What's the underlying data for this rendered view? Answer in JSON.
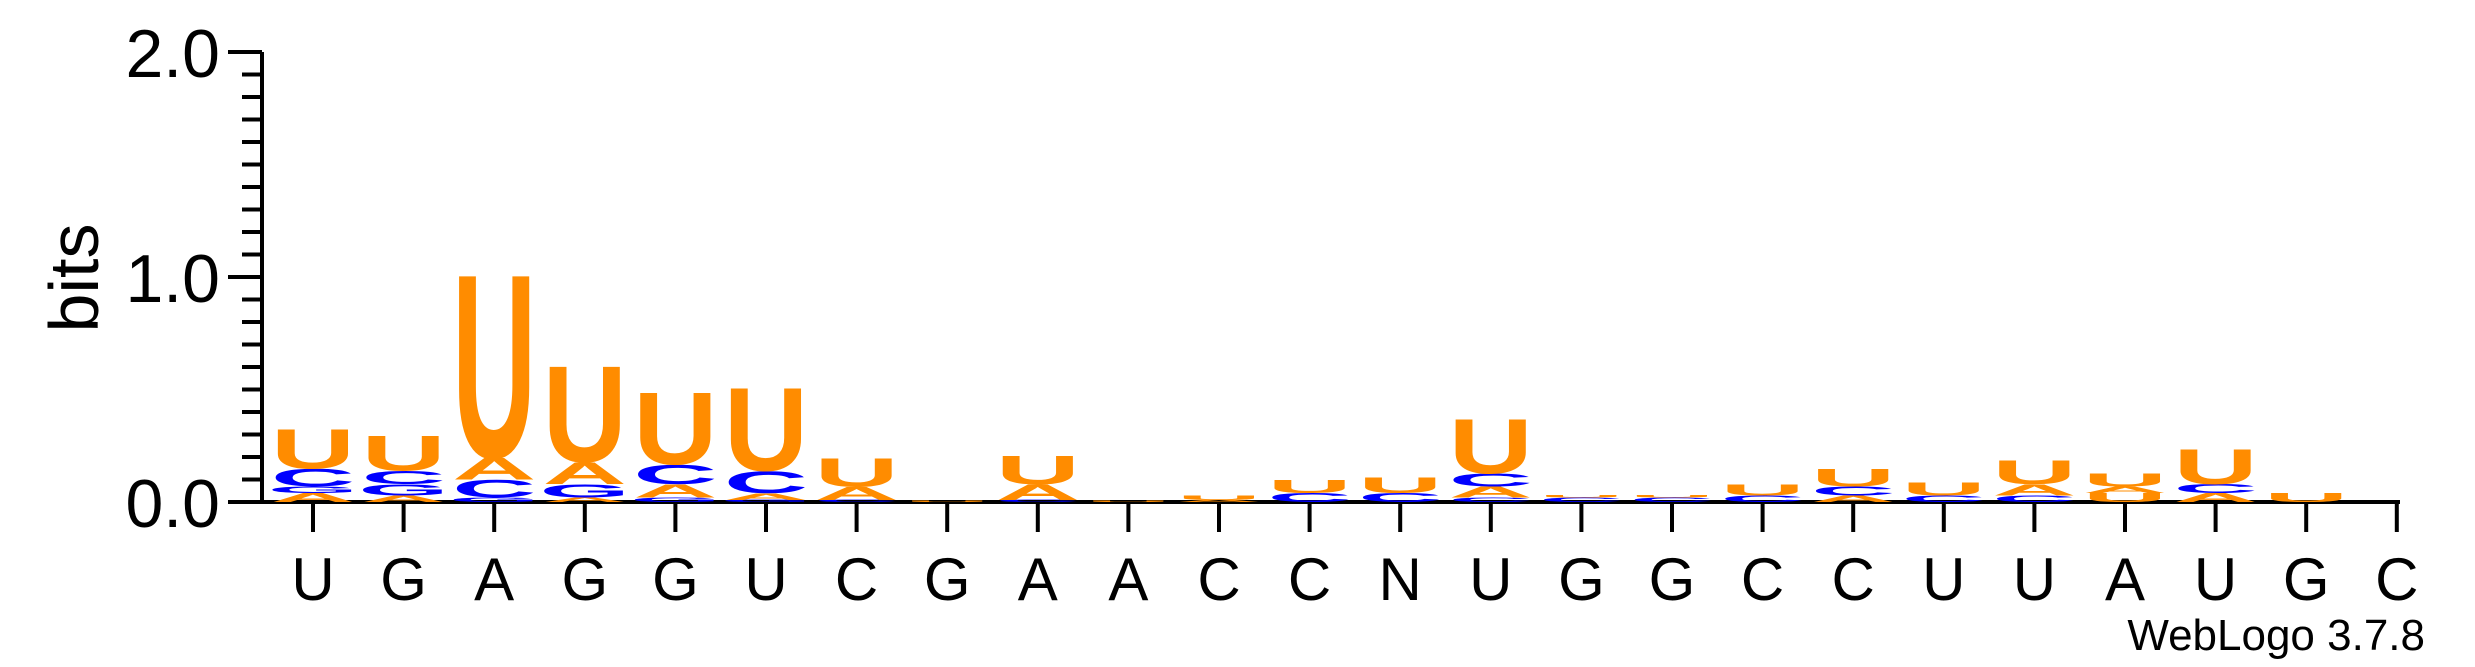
{
  "chart_data": {
    "type": "sequence-logo",
    "ylabel": "bits",
    "ylim": [
      0,
      2.0
    ],
    "yticks": [
      "0.0",
      "1.0",
      "2.0"
    ],
    "xticklabels": [
      "U",
      "G",
      "A",
      "G",
      "G",
      "U",
      "C",
      "G",
      "A",
      "A",
      "C",
      "C",
      "N",
      "U",
      "G",
      "G",
      "C",
      "C",
      "U",
      "U",
      "A",
      "U",
      "G",
      "C"
    ],
    "footer": "WebLogo 3.7.8",
    "colors": {
      "U": "#ff8c00",
      "A": "#ff8c00",
      "C": "#0000ff",
      "G": "#0000ff"
    },
    "positions": [
      {
        "stack": [
          {
            "letter": "A",
            "bits": 0.04
          },
          {
            "letter": "G",
            "bits": 0.03
          },
          {
            "letter": "C",
            "bits": 0.08
          },
          {
            "letter": "U",
            "bits": 0.18
          }
        ]
      },
      {
        "stack": [
          {
            "letter": "A",
            "bits": 0.03
          },
          {
            "letter": "G",
            "bits": 0.05
          },
          {
            "letter": "C",
            "bits": 0.06
          },
          {
            "letter": "U",
            "bits": 0.16
          }
        ]
      },
      {
        "stack": [
          {
            "letter": "G",
            "bits": 0.02
          },
          {
            "letter": "C",
            "bits": 0.08
          },
          {
            "letter": "A",
            "bits": 0.1
          },
          {
            "letter": "U",
            "bits": 0.84
          }
        ]
      },
      {
        "stack": [
          {
            "letter": "A",
            "bits": 0.02
          },
          {
            "letter": "G",
            "bits": 0.06
          },
          {
            "letter": "A",
            "bits": 0.1
          },
          {
            "letter": "U",
            "bits": 0.44
          }
        ]
      },
      {
        "stack": [
          {
            "letter": "G",
            "bits": 0.02
          },
          {
            "letter": "A",
            "bits": 0.06
          },
          {
            "letter": "C",
            "bits": 0.09
          },
          {
            "letter": "U",
            "bits": 0.33
          }
        ]
      },
      {
        "stack": [
          {
            "letter": "G",
            "bits": 0.01
          },
          {
            "letter": "A",
            "bits": 0.03
          },
          {
            "letter": "C",
            "bits": 0.1
          },
          {
            "letter": "U",
            "bits": 0.38
          }
        ]
      },
      {
        "stack": [
          {
            "letter": "C",
            "bits": 0.01
          },
          {
            "letter": "A",
            "bits": 0.06
          },
          {
            "letter": "U",
            "bits": 0.13
          }
        ]
      },
      {
        "stack": [
          {
            "letter": "U",
            "bits": 0.005
          }
        ]
      },
      {
        "stack": [
          {
            "letter": "C",
            "bits": 0.01
          },
          {
            "letter": "A",
            "bits": 0.07
          },
          {
            "letter": "U",
            "bits": 0.13
          }
        ]
      },
      {
        "stack": [
          {
            "letter": "U",
            "bits": 0.005
          }
        ]
      },
      {
        "stack": [
          {
            "letter": "A",
            "bits": 0.01
          },
          {
            "letter": "U",
            "bits": 0.02
          }
        ]
      },
      {
        "stack": [
          {
            "letter": "C",
            "bits": 0.04
          },
          {
            "letter": "U",
            "bits": 0.06
          }
        ]
      },
      {
        "stack": [
          {
            "letter": "C",
            "bits": 0.04
          },
          {
            "letter": "U",
            "bits": 0.07
          }
        ]
      },
      {
        "stack": [
          {
            "letter": "C",
            "bits": 0.02
          },
          {
            "letter": "A",
            "bits": 0.05
          },
          {
            "letter": "C",
            "bits": 0.06
          },
          {
            "letter": "U",
            "bits": 0.25
          }
        ]
      },
      {
        "stack": [
          {
            "letter": "C",
            "bits": 0.02
          },
          {
            "letter": "U",
            "bits": 0.01
          }
        ]
      },
      {
        "stack": [
          {
            "letter": "C",
            "bits": 0.02
          },
          {
            "letter": "U",
            "bits": 0.01
          }
        ]
      },
      {
        "stack": [
          {
            "letter": "C",
            "bits": 0.03
          },
          {
            "letter": "U",
            "bits": 0.05
          }
        ]
      },
      {
        "stack": [
          {
            "letter": "A",
            "bits": 0.03
          },
          {
            "letter": "C",
            "bits": 0.04
          },
          {
            "letter": "U",
            "bits": 0.08
          }
        ]
      },
      {
        "stack": [
          {
            "letter": "C",
            "bits": 0.03
          },
          {
            "letter": "U",
            "bits": 0.06
          }
        ]
      },
      {
        "stack": [
          {
            "letter": "C",
            "bits": 0.03
          },
          {
            "letter": "A",
            "bits": 0.05
          },
          {
            "letter": "U",
            "bits": 0.11
          }
        ]
      },
      {
        "stack": [
          {
            "letter": "U",
            "bits": 0.04
          },
          {
            "letter": "A",
            "bits": 0.03
          },
          {
            "letter": "U",
            "bits": 0.06
          }
        ]
      },
      {
        "stack": [
          {
            "letter": "A",
            "bits": 0.04
          },
          {
            "letter": "C",
            "bits": 0.04
          },
          {
            "letter": "U",
            "bits": 0.16
          }
        ]
      },
      {
        "stack": [
          {
            "letter": "U",
            "bits": 0.04
          }
        ]
      },
      {
        "stack": []
      }
    ]
  }
}
